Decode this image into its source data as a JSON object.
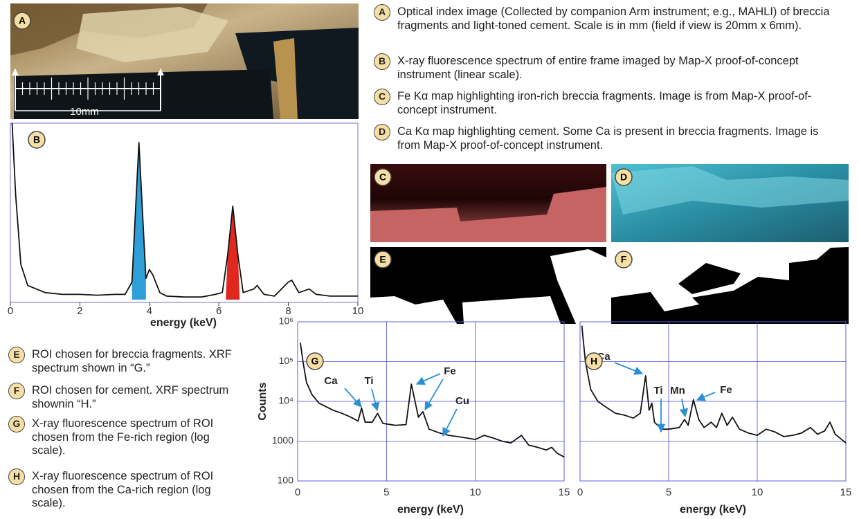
{
  "scale_label": "10mm",
  "right_captions": [
    {
      "letter": "A",
      "text": "Optical index image (Collected by companion Arm instrument; e.g., MAHLI) of breccia fragments and light-toned cement. Scale is in mm (field if view is 20mm x 6mm)."
    },
    {
      "letter": "B",
      "text": "X-ray fluorescence spectrum of entire frame imaged by Map-X proof-of-concept instrument (linear scale)."
    },
    {
      "letter": "C",
      "text": "Fe Kα map highlighting iron-rich breccia fragments. Image is from Map-X proof-of-concept instrument."
    },
    {
      "letter": "D",
      "text": "Ca Kα map highlighting cement. Some Ca is present in breccia fragments. Image is from Map-X proof-of-concept instrument."
    }
  ],
  "bottom_captions": [
    {
      "letter": "E",
      "text": "ROI chosen for breccia fragments. XRF spectrum shown in “G.”"
    },
    {
      "letter": "F",
      "text": "ROI chosen for cement. XRF spectrum shownin “H.”"
    },
    {
      "letter": "G",
      "text": "X-ray fluorescence spectrum of ROI chosen from the Fe-rich region (log scale)."
    },
    {
      "letter": "H",
      "text": "X-ray fluorescence spectrum of ROI chosen from the Ca-rich region (log scale)."
    }
  ],
  "chart_data": [
    {
      "type": "line",
      "x_label": "energy (keV)",
      "x": [
        0.05,
        0.15,
        0.3,
        0.5,
        1,
        1.5,
        2,
        2.5,
        3,
        3.3,
        3.5,
        3.6,
        3.7,
        3.8,
        3.9,
        4.0,
        4.1,
        4.3,
        4.5,
        5,
        5.5,
        5.9,
        6.1,
        6.25,
        6.4,
        6.55,
        6.7,
        7,
        7.1,
        7.3,
        7.6,
        8,
        8.1,
        8.3,
        8.6,
        8.8,
        9.2,
        10
      ],
      "values": [
        100,
        60,
        20,
        8,
        4,
        3,
        3,
        2.5,
        3,
        3,
        10,
        50,
        89,
        50,
        12,
        17,
        14,
        4,
        2,
        1.5,
        1.5,
        3,
        4,
        25,
        53,
        25,
        4,
        6,
        8,
        3,
        2,
        10,
        11,
        4,
        6,
        3,
        2,
        2
      ],
      "color": "#111111",
      "xlim": [
        0,
        10
      ],
      "xticks": [
        0,
        2,
        4,
        6,
        8,
        10
      ],
      "ylim": [
        0,
        100
      ],
      "highlights": [
        {
          "xrange": [
            3.5,
            3.9
          ],
          "color": "#2f9fd8"
        },
        {
          "xrange": [
            6.2,
            6.6
          ],
          "color": "#e0281e"
        }
      ]
    },
    {
      "type": "line",
      "y_label": "Counts",
      "x_label": "energy (keV)",
      "x": [
        0.15,
        0.3,
        0.5,
        0.8,
        1.2,
        2,
        2.5,
        3,
        3.4,
        3.6,
        3.8,
        4.2,
        4.5,
        4.8,
        5.5,
        6.1,
        6.4,
        6.8,
        7.05,
        7.4,
        8,
        8.5,
        9,
        9.5,
        10,
        10.5,
        11,
        11.5,
        12,
        12.6,
        13,
        13.5,
        14,
        14.3,
        14.6,
        15
      ],
      "values": [
        300000,
        100000,
        30000,
        15000,
        9000,
        6000,
        5000,
        4000,
        3200,
        6800,
        3000,
        3000,
        5000,
        2800,
        2500,
        2600,
        27000,
        4000,
        5500,
        2000,
        1600,
        1400,
        1300,
        1200,
        1100,
        1400,
        1200,
        1000,
        900,
        1400,
        800,
        700,
        600,
        700,
        500,
        400
      ],
      "color": "#111111",
      "xlim": [
        0,
        15
      ],
      "xticks": [
        0,
        5,
        10,
        15
      ],
      "ylim": [
        100,
        1000000
      ],
      "yticks": [
        100,
        1000,
        {
          "value": 10000,
          "label": "10⁴"
        },
        {
          "value": 100000,
          "label": "10⁵"
        },
        {
          "value": 1000000,
          "label": "10⁶"
        }
      ],
      "log_y": true,
      "grid": true,
      "annotations": [
        "Ca",
        "Ti",
        "Fe",
        "Cu"
      ]
    },
    {
      "type": "line",
      "x_label": "energy (keV)",
      "x": [
        0.1,
        0.3,
        0.6,
        1,
        1.5,
        2,
        2.5,
        3,
        3.4,
        3.7,
        3.9,
        4.05,
        4.2,
        4.6,
        5,
        5.6,
        5.9,
        6.1,
        6.4,
        6.7,
        7,
        7.4,
        7.7,
        8,
        8.3,
        8.6,
        9,
        9.5,
        10,
        10.5,
        11,
        11.5,
        12,
        12.5,
        13,
        13.4,
        13.8,
        14.1,
        14.4,
        15
      ],
      "values": [
        800000,
        100000,
        20000,
        10000,
        7000,
        5000,
        4500,
        3800,
        5000,
        44000,
        6000,
        9000,
        3000,
        2000,
        2000,
        2200,
        3500,
        2500,
        11000,
        3500,
        2200,
        3000,
        2200,
        5000,
        2500,
        4000,
        2000,
        1600,
        1400,
        2000,
        1700,
        1300,
        1400,
        1600,
        2200,
        1500,
        1800,
        3000,
        1500,
        900
      ],
      "color": "#111111",
      "xlim": [
        0,
        15
      ],
      "xticks": [
        0,
        5,
        10,
        15
      ],
      "ylim": [
        100,
        1000000
      ],
      "yticks": [
        100,
        1000,
        10000,
        100000,
        1000000
      ],
      "ytick_labels": false,
      "log_y": true,
      "grid": true,
      "annotations": [
        "Ca",
        "Ti",
        "Mn",
        "Fe"
      ]
    }
  ]
}
